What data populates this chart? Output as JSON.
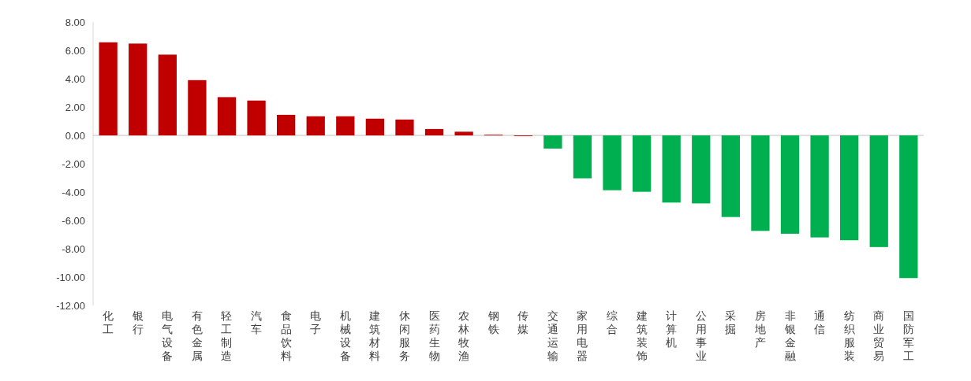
{
  "chart_data": {
    "type": "bar",
    "categories": [
      "化工",
      "银行",
      "电气设备",
      "有色金属",
      "轻工制造",
      "汽车",
      "食品饮料",
      "电子",
      "机械设备",
      "建筑材料",
      "休闲服务",
      "医药生物",
      "农林牧渔",
      "钢铁",
      "传媒",
      "交通运输",
      "家用电器",
      "综合",
      "建筑装饰",
      "计算机",
      "公用事业",
      "采掘",
      "房地产",
      "非银金融",
      "通信",
      "纺织服装",
      "商业贸易",
      "国防军工"
    ],
    "values": [
      6.57,
      6.48,
      5.7,
      3.9,
      2.7,
      2.46,
      1.45,
      1.35,
      1.35,
      1.18,
      1.12,
      0.45,
      0.26,
      0.05,
      -0.05,
      -0.93,
      -3.03,
      -3.87,
      -3.98,
      -4.74,
      -4.8,
      -5.76,
      -6.74,
      -6.94,
      -7.2,
      -7.4,
      -7.88,
      -10.07
    ],
    "colors": [
      "#c00000",
      "#c00000",
      "#c00000",
      "#c00000",
      "#c00000",
      "#c00000",
      "#c00000",
      "#c00000",
      "#c00000",
      "#c00000",
      "#c00000",
      "#c00000",
      "#c00000",
      "#c00000",
      "#c00000",
      "#00b050",
      "#00b050",
      "#00b050",
      "#00b050",
      "#00b050",
      "#00b050",
      "#00b050",
      "#00b050",
      "#00b050",
      "#00b050",
      "#00b050",
      "#00b050",
      "#00b050"
    ],
    "ylim": [
      -12,
      8
    ],
    "yticks": [
      {
        "value": -12,
        "label": "-12.00"
      },
      {
        "value": -10,
        "label": "-10.00"
      },
      {
        "value": -8,
        "label": "-8.00"
      },
      {
        "value": -6,
        "label": "-6.00"
      },
      {
        "value": -4,
        "label": "-4.00"
      },
      {
        "value": -2,
        "label": "-2.00"
      },
      {
        "value": 0,
        "label": "0.00"
      },
      {
        "value": 2,
        "label": "2.00"
      },
      {
        "value": 4,
        "label": "4.00"
      },
      {
        "value": 6,
        "label": "6.00"
      },
      {
        "value": 8,
        "label": "8.00"
      }
    ]
  }
}
